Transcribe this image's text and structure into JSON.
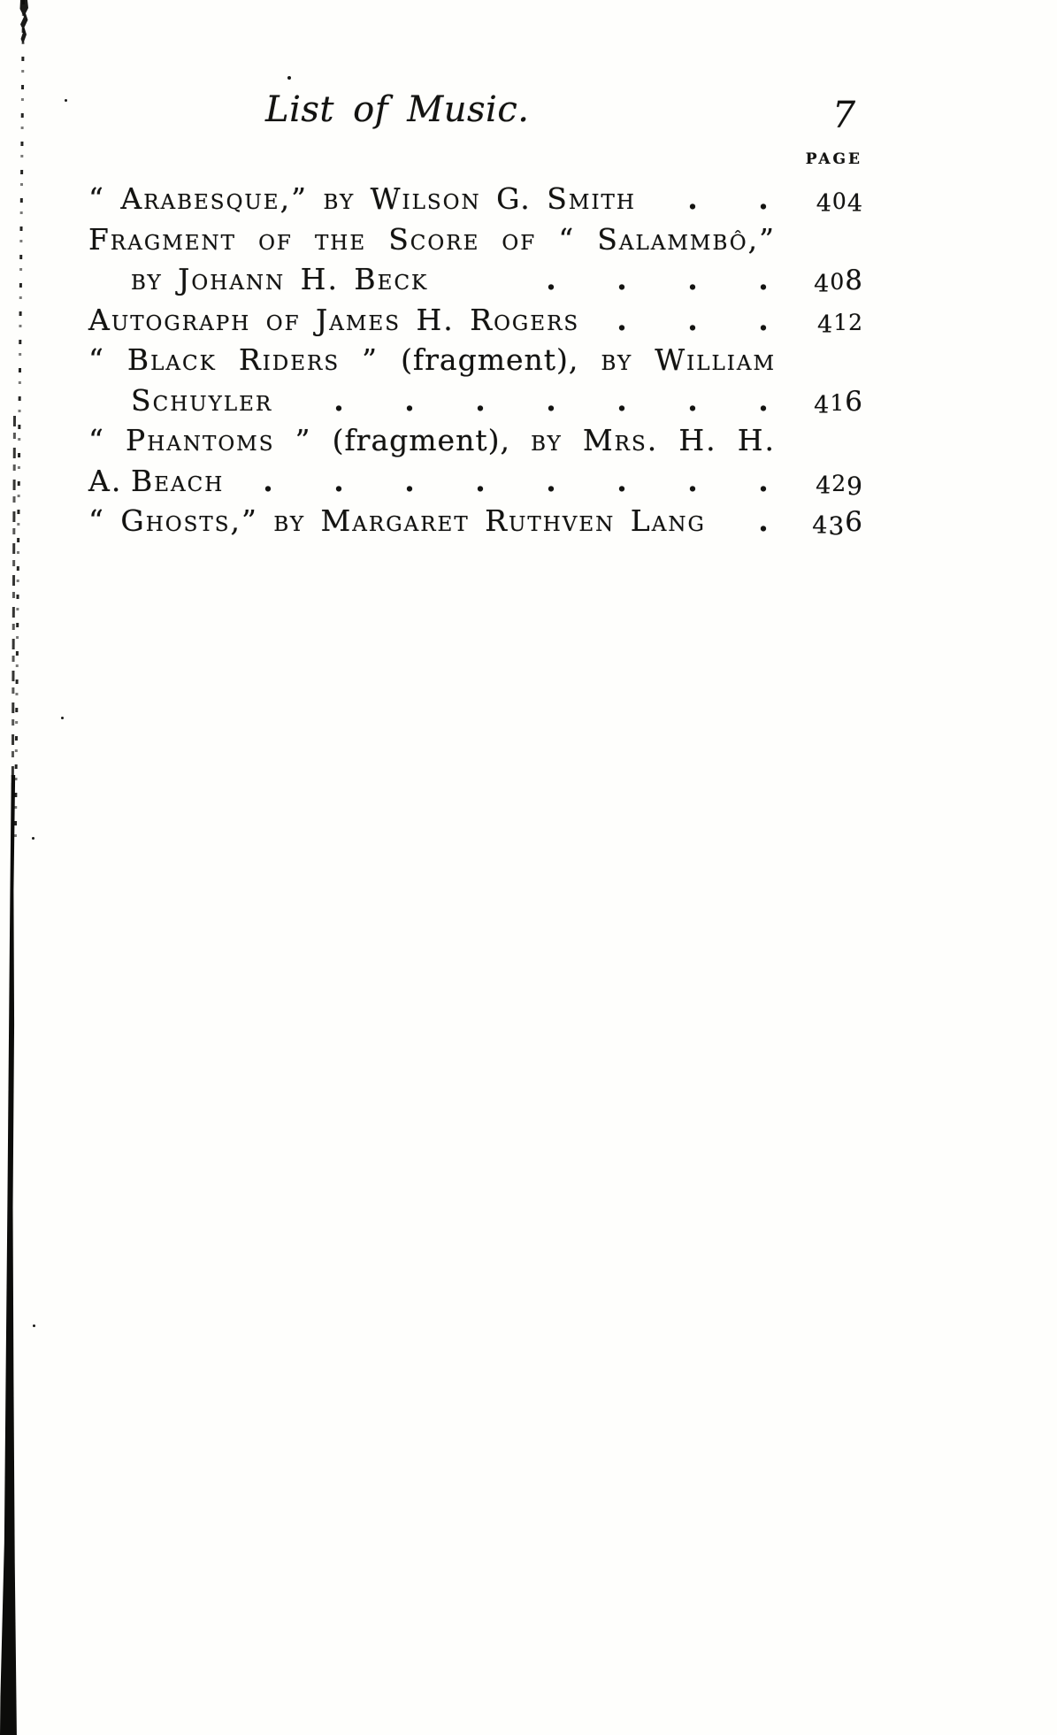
{
  "header": {
    "title": "List of Music.",
    "folio": "7",
    "column_label": "PAGE"
  },
  "list": {
    "rows": [
      {
        "parts": [
          {
            "sc": true,
            "text": "“ Arabesque,” by Wilson G. Smith"
          }
        ],
        "indent": false,
        "justify": false,
        "dots": 2,
        "page": "404"
      },
      {
        "parts": [
          {
            "sc": true,
            "text": "Fragment of the Score of “ Salammbô,”"
          }
        ],
        "indent": false,
        "justify": true,
        "dots": 0,
        "page": ""
      },
      {
        "parts": [
          {
            "sc": true,
            "text": "by Johann H. Beck"
          }
        ],
        "indent": true,
        "justify": false,
        "dots": 4,
        "page": "408"
      },
      {
        "parts": [
          {
            "sc": true,
            "text": "Autograph of James H. Rogers"
          }
        ],
        "indent": false,
        "justify": false,
        "dots": 3,
        "page": "412"
      },
      {
        "parts": [
          {
            "sc": true,
            "text": "“ Black Riders ” "
          },
          {
            "sc": false,
            "text": "(fragment),"
          },
          {
            "sc": true,
            "text": " by William"
          }
        ],
        "indent": false,
        "justify": true,
        "dots": 0,
        "page": ""
      },
      {
        "parts": [
          {
            "sc": true,
            "text": "Schuyler"
          }
        ],
        "indent": true,
        "justify": false,
        "dots": 7,
        "page": "416"
      },
      {
        "parts": [
          {
            "sc": true,
            "text": "“ Phantoms ” "
          },
          {
            "sc": false,
            "text": "(fragment),"
          },
          {
            "sc": true,
            "text": " by Mrs. H. H. A."
          }
        ],
        "indent": false,
        "justify": true,
        "dots": 0,
        "page": ""
      },
      {
        "parts": [
          {
            "sc": true,
            "text": "Beach"
          }
        ],
        "indent": true,
        "justify": false,
        "dots": 8,
        "page": "429"
      },
      {
        "parts": [
          {
            "sc": true,
            "text": "“ Ghosts,” by Margaret Ruthven Lang"
          }
        ],
        "indent": false,
        "justify": false,
        "dots": 1,
        "page": "436"
      }
    ]
  },
  "colors": {
    "ink": "#131311",
    "paper": "#fefefc"
  }
}
